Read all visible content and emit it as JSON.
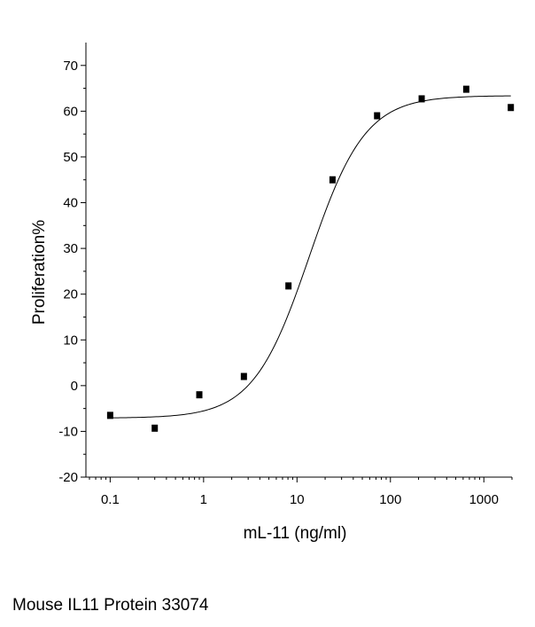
{
  "chart_data": {
    "type": "scatter",
    "title": "",
    "xlabel": "mL-11 (ng/ml)",
    "ylabel": "Proliferation%",
    "x_scale": "log",
    "xlim": [
      0.055,
      2000
    ],
    "ylim": [
      -20,
      75
    ],
    "x_ticks": [
      0.1,
      1,
      10,
      100,
      1000
    ],
    "x_tick_labels": [
      "0.1",
      "1",
      "10",
      "100",
      "1000"
    ],
    "y_ticks": [
      -20,
      -10,
      0,
      10,
      20,
      30,
      40,
      50,
      60,
      70
    ],
    "y_tick_labels": [
      "-20",
      "-10",
      "0",
      "10",
      "20",
      "30",
      "40",
      "50",
      "60",
      "70"
    ],
    "grid": false,
    "legend": "none",
    "series": [
      {
        "x": [
          0.1,
          0.3,
          0.9,
          2.7,
          8.1,
          24,
          72,
          216,
          648,
          1944
        ],
        "y": [
          -6.5,
          -9.3,
          -2,
          2,
          21.8,
          45,
          59,
          62.7,
          64.8,
          60.8
        ],
        "marker": "square",
        "color": "#000000"
      }
    ],
    "fit_curve": {
      "model": "4PL",
      "bottom": -7.1,
      "top": 63.4,
      "ec50": 13.5,
      "hill": 1.45,
      "color": "#000000"
    }
  },
  "caption": "Mouse IL11 Protein 33074"
}
